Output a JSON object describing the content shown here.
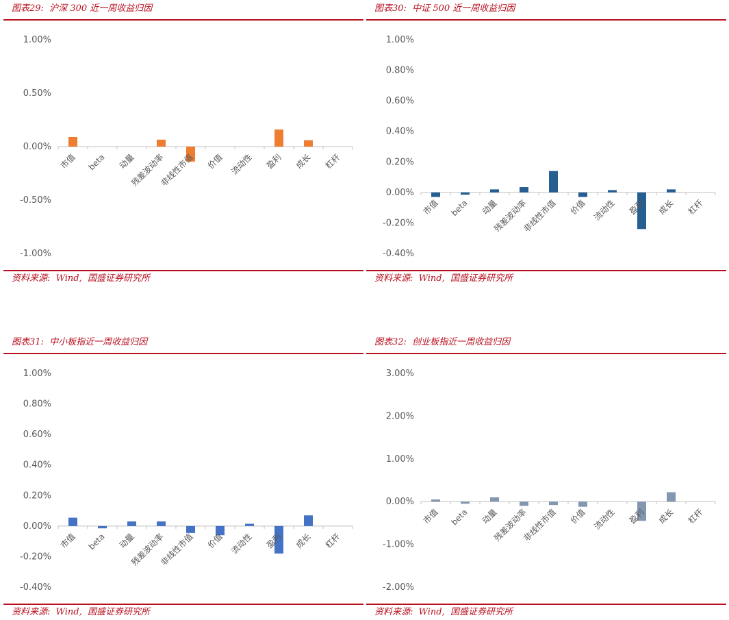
{
  "panels": [
    {
      "title": "图表29:  沪深 300 近一周收益归因",
      "source": "资料来源:  Wind,  国盛证券研究所",
      "chart_data": {
        "type": "bar",
        "categories": [
          "市值",
          "beta",
          "动量",
          "残差波动率",
          "非线性市值",
          "价值",
          "流动性",
          "盈利",
          "成长",
          "杠杆"
        ],
        "values": [
          0.09,
          0.0,
          0.0,
          0.065,
          -0.14,
          0.0,
          0.0,
          0.16,
          0.06,
          0.0
        ],
        "ylim": [
          -1.0,
          1.0
        ],
        "yticks": [
          1.0,
          0.5,
          0.0,
          -0.5,
          -1.0
        ],
        "ytick_labels": [
          "1.00%",
          "0.50%",
          "0.00%",
          "-0.50%",
          "-1.00%"
        ],
        "color": "#ed7d31",
        "grid": false
      }
    },
    {
      "title": "图表30:  中证 500 近一周收益归因",
      "source": "资料来源:  Wind,  国盛证券研究所",
      "chart_data": {
        "type": "bar",
        "categories": [
          "市值",
          "beta",
          "动量",
          "残差波动率",
          "非线性市值",
          "价值",
          "流动性",
          "盈利",
          "成长",
          "杠杆"
        ],
        "values": [
          -0.03,
          -0.015,
          0.02,
          0.035,
          0.14,
          -0.03,
          0.015,
          -0.24,
          0.02,
          0.0
        ],
        "ylim": [
          -0.4,
          1.0
        ],
        "yticks": [
          1.0,
          0.8,
          0.6,
          0.4,
          0.2,
          0.0,
          -0.2,
          -0.4
        ],
        "ytick_labels": [
          "1.00%",
          "0.80%",
          "0.60%",
          "0.40%",
          "0.20%",
          "0.00%",
          "-0.20%",
          "-0.40%"
        ],
        "color": "#255e91",
        "grid": false
      }
    },
    {
      "title": "图表31:  中小板指近一周收益归因",
      "source": "资料来源:  Wind,  国盛证券研究所",
      "chart_data": {
        "type": "bar",
        "categories": [
          "市值",
          "beta",
          "动量",
          "残差波动率",
          "非线性市值",
          "价值",
          "流动性",
          "盈利",
          "成长",
          "杠杆"
        ],
        "values": [
          0.055,
          -0.015,
          0.03,
          0.03,
          -0.045,
          -0.06,
          0.015,
          -0.18,
          0.07,
          0.0
        ],
        "ylim": [
          -0.4,
          1.0
        ],
        "yticks": [
          1.0,
          0.8,
          0.6,
          0.4,
          0.2,
          0.0,
          -0.2,
          -0.4
        ],
        "ytick_labels": [
          "1.00%",
          "0.80%",
          "0.60%",
          "0.40%",
          "0.20%",
          "0.00%",
          "-0.20%",
          "-0.40%"
        ],
        "color": "#4472c4",
        "grid": false
      }
    },
    {
      "title": "图表32:  创业板指近一周收益归因",
      "source": "资料来源:  Wind,  国盛证券研究所",
      "chart_data": {
        "type": "bar",
        "categories": [
          "市值",
          "beta",
          "动量",
          "残差波动率",
          "非线性市值",
          "价值",
          "流动性",
          "盈利",
          "成长",
          "杠杆"
        ],
        "values": [
          0.05,
          -0.05,
          0.1,
          -0.1,
          -0.08,
          -0.12,
          0.0,
          -0.45,
          0.22,
          0.0
        ],
        "ylim": [
          -2.0,
          3.0
        ],
        "yticks": [
          3.0,
          2.0,
          1.0,
          0.0,
          -1.0,
          -2.0
        ],
        "ytick_labels": [
          "3.00%",
          "2.00%",
          "1.00%",
          "0.00%",
          "-1.00%",
          "-2.00%"
        ],
        "color": "#8497b0",
        "grid": false
      }
    }
  ]
}
